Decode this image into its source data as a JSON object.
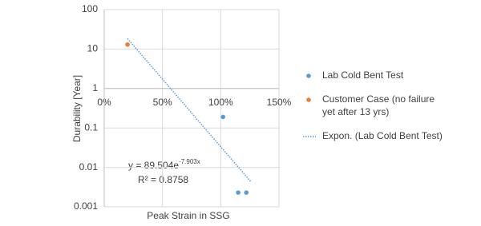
{
  "chart_data": {
    "type": "scatter",
    "x_label": "Peak Strain in SSG",
    "y_label": "Durability [Year]",
    "log_y": true,
    "grid": true,
    "legend": "right",
    "xlim": [
      0,
      1.5
    ],
    "xticks": [
      {
        "value": 0,
        "label": "0%"
      },
      {
        "value": 0.5,
        "label": "50%"
      },
      {
        "value": 1,
        "label": "100%"
      },
      {
        "value": 1.5,
        "label": "150%"
      }
    ],
    "ylim": [
      0.001,
      100
    ],
    "yticks": [
      100,
      10,
      1,
      0.1,
      0.01,
      0.001
    ],
    "x_axis_crosses": 1,
    "series": [
      {
        "name": "Lab Cold Bent Test",
        "color": "#5b9bd5",
        "kind": "points",
        "x": [
          1.02,
          1.15,
          1.22
        ],
        "values": [
          0.19,
          0.0023,
          0.0023
        ]
      },
      {
        "name": "Customer Case (no failure yet after 13 yrs)",
        "color": "#ed7d31",
        "kind": "points",
        "x": [
          0.2
        ],
        "values": [
          13
        ]
      },
      {
        "name": "Expon. (Lab Cold Bent Test)",
        "color": "#5b9bd5",
        "kind": "trendline",
        "x": [
          0.2,
          1.26
        ],
        "values": [
          18.4,
          0.0043
        ]
      }
    ],
    "equation": {
      "text": "y = 89.504e",
      "exponent": "-7.903x"
    },
    "r_squared": "R² = 0.8758"
  }
}
